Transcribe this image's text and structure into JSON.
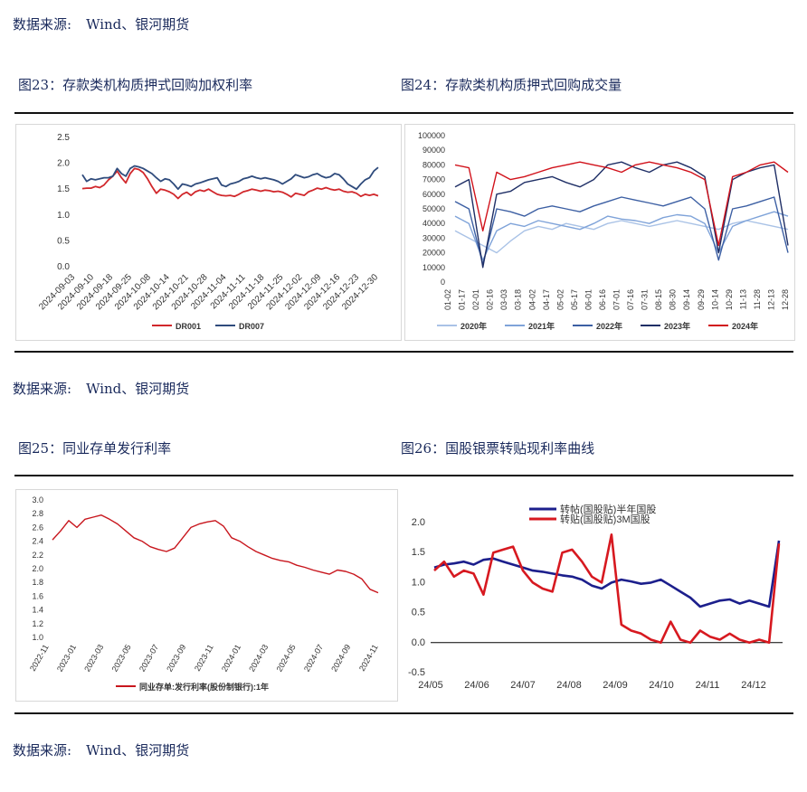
{
  "source_label": "数据来源:",
  "source_value": "Wind、银河期货",
  "titles": {
    "fig23": "图23：存款类机构质押式回购加权利率",
    "fig24": "图24：存款类机构质押式回购成交量",
    "fig25": "图25：同业存单发行利率",
    "fig26": "图26：国股银票转贴现利率曲线"
  },
  "chart_data": [
    {
      "id": "fig23",
      "type": "line",
      "title": "存款类机构质押式回购加权利率",
      "ylim": [
        0,
        2.5
      ],
      "yticks": [
        "0.0",
        "0.5",
        "1.0",
        "1.5",
        "2.0",
        "2.5"
      ],
      "x_tick_labels": [
        "2024-09-03",
        "2024-09-10",
        "2024-09-18",
        "2024-09-25",
        "2024-10-08",
        "2024-10-14",
        "2024-10-21",
        "2024-10-28",
        "2024-11-04",
        "2024-11-11",
        "2024-11-18",
        "2024-11-25",
        "2024-12-02",
        "2024-12-09",
        "2024-12-16",
        "2024-12-23",
        "2024-12-30"
      ],
      "legend_position": "bottom",
      "series": [
        {
          "name": "DR001",
          "color": "#d1272b",
          "values": [
            1.51,
            1.52,
            1.52,
            1.55,
            1.53,
            1.58,
            1.68,
            1.75,
            1.85,
            1.72,
            1.62,
            1.8,
            1.9,
            1.88,
            1.82,
            1.7,
            1.55,
            1.42,
            1.5,
            1.48,
            1.45,
            1.4,
            1.32,
            1.4,
            1.44,
            1.38,
            1.45,
            1.48,
            1.46,
            1.5,
            1.45,
            1.4,
            1.38,
            1.37,
            1.38,
            1.36,
            1.4,
            1.45,
            1.47,
            1.5,
            1.48,
            1.46,
            1.48,
            1.47,
            1.45,
            1.46,
            1.44,
            1.4,
            1.35,
            1.42,
            1.4,
            1.38,
            1.45,
            1.48,
            1.52,
            1.5,
            1.53,
            1.5,
            1.48,
            1.5,
            1.46,
            1.44,
            1.45,
            1.42,
            1.36,
            1.4,
            1.38,
            1.4,
            1.37
          ]
        },
        {
          "name": "DR007",
          "color": "#2f4b7c",
          "values": [
            1.78,
            1.65,
            1.7,
            1.68,
            1.7,
            1.72,
            1.72,
            1.75,
            1.9,
            1.8,
            1.75,
            1.9,
            1.95,
            1.93,
            1.9,
            1.85,
            1.8,
            1.72,
            1.65,
            1.7,
            1.68,
            1.6,
            1.5,
            1.6,
            1.58,
            1.55,
            1.6,
            1.62,
            1.65,
            1.68,
            1.7,
            1.72,
            1.58,
            1.55,
            1.6,
            1.62,
            1.65,
            1.7,
            1.72,
            1.75,
            1.72,
            1.7,
            1.72,
            1.7,
            1.68,
            1.65,
            1.6,
            1.65,
            1.7,
            1.78,
            1.75,
            1.72,
            1.74,
            1.78,
            1.8,
            1.75,
            1.72,
            1.74,
            1.8,
            1.78,
            1.7,
            1.6,
            1.55,
            1.5,
            1.6,
            1.68,
            1.72,
            1.85,
            1.92
          ]
        }
      ]
    },
    {
      "id": "fig24",
      "type": "line",
      "title": "存款类机构质押式回购成交量",
      "ylim": [
        0,
        100000
      ],
      "yticks": [
        "0",
        "10000",
        "20000",
        "30000",
        "40000",
        "50000",
        "60000",
        "70000",
        "80000",
        "90000",
        "100000"
      ],
      "x_tick_labels": [
        "01-02",
        "01-17",
        "02-01",
        "02-16",
        "03-03",
        "03-18",
        "04-02",
        "04-17",
        "05-02",
        "05-17",
        "06-01",
        "06-16",
        "07-01",
        "07-16",
        "07-31",
        "08-15",
        "08-30",
        "09-14",
        "09-29",
        "10-14",
        "10-29",
        "11-13",
        "11-28",
        "12-13",
        "12-28"
      ],
      "legend_position": "bottom",
      "series": [
        {
          "name": "2020年",
          "color": "#a9c2e6",
          "values": [
            35000,
            30000,
            25000,
            20000,
            28000,
            35000,
            38000,
            36000,
            40000,
            38000,
            36000,
            40000,
            42000,
            40000,
            38000,
            40000,
            42000,
            40000,
            38000,
            36000,
            40000,
            42000,
            40000,
            38000,
            36000
          ]
        },
        {
          "name": "2021年",
          "color": "#7fa3d9",
          "values": [
            45000,
            40000,
            15000,
            35000,
            40000,
            38000,
            42000,
            40000,
            38000,
            36000,
            40000,
            45000,
            43000,
            42000,
            40000,
            44000,
            46000,
            45000,
            40000,
            20000,
            38000,
            42000,
            45000,
            48000,
            45000
          ]
        },
        {
          "name": "2022年",
          "color": "#3c5fa3",
          "values": [
            55000,
            50000,
            12000,
            50000,
            48000,
            45000,
            50000,
            52000,
            50000,
            48000,
            52000,
            55000,
            58000,
            56000,
            54000,
            52000,
            55000,
            58000,
            50000,
            15000,
            50000,
            52000,
            55000,
            58000,
            20000
          ]
        },
        {
          "name": "2023年",
          "color": "#1f2f66",
          "values": [
            65000,
            70000,
            10000,
            60000,
            62000,
            68000,
            70000,
            72000,
            68000,
            65000,
            70000,
            80000,
            82000,
            78000,
            75000,
            80000,
            82000,
            78000,
            72000,
            20000,
            70000,
            75000,
            78000,
            80000,
            25000
          ]
        },
        {
          "name": "2024年",
          "color": "#d1121b",
          "values": [
            80000,
            78000,
            35000,
            75000,
            70000,
            72000,
            75000,
            78000,
            80000,
            82000,
            80000,
            78000,
            75000,
            80000,
            82000,
            80000,
            78000,
            75000,
            70000,
            25000,
            72000,
            75000,
            80000,
            82000,
            75000
          ]
        }
      ]
    },
    {
      "id": "fig25",
      "type": "line",
      "title": "同业存单发行利率",
      "ylim": [
        1.0,
        3.0
      ],
      "yticks": [
        "1.0",
        "1.2",
        "1.4",
        "1.6",
        "1.8",
        "2.0",
        "2.2",
        "2.4",
        "2.6",
        "2.8",
        "3.0"
      ],
      "x_tick_labels": [
        "2022-11",
        "2023-01",
        "2023-03",
        "2023-05",
        "2023-07",
        "2023-09",
        "2023-11",
        "2024-01",
        "2024-03",
        "2024-05",
        "2024-07",
        "2024-09",
        "2024-11"
      ],
      "legend_position": "bottom",
      "series": [
        {
          "name": "同业存单:发行利率(股份制银行):1年",
          "color": "#c8161d",
          "values": [
            2.42,
            2.55,
            2.7,
            2.6,
            2.72,
            2.75,
            2.78,
            2.72,
            2.65,
            2.55,
            2.45,
            2.4,
            2.32,
            2.28,
            2.25,
            2.3,
            2.45,
            2.6,
            2.65,
            2.68,
            2.7,
            2.62,
            2.45,
            2.4,
            2.32,
            2.25,
            2.2,
            2.15,
            2.12,
            2.1,
            2.05,
            2.02,
            1.98,
            1.95,
            1.92,
            1.98,
            1.96,
            1.92,
            1.85,
            1.7,
            1.65
          ]
        }
      ]
    },
    {
      "id": "fig26",
      "type": "line",
      "title": "国股银票转贴现利率曲线",
      "ylim": [
        -0.5,
        2.0
      ],
      "yticks": [
        "-0.5",
        "0.0",
        "0.5",
        "1.0",
        "1.5",
        "2.0"
      ],
      "x_tick_labels": [
        "24/05",
        "24/06",
        "24/07",
        "24/08",
        "24/09",
        "24/10",
        "24/11",
        "24/12"
      ],
      "legend_position": "top",
      "series": [
        {
          "name": "转帖(国股贴)半年国股",
          "color": "#1c1f8c",
          "values": [
            1.25,
            1.3,
            1.32,
            1.35,
            1.3,
            1.38,
            1.4,
            1.35,
            1.3,
            1.25,
            1.2,
            1.18,
            1.15,
            1.12,
            1.1,
            1.05,
            0.95,
            0.9,
            1.0,
            1.05,
            1.02,
            0.98,
            1.0,
            1.05,
            0.95,
            0.85,
            0.75,
            0.6,
            0.65,
            0.7,
            0.72,
            0.65,
            0.7,
            0.65,
            0.6,
            1.7
          ]
        },
        {
          "name": "转贴(国股贴)3M国股",
          "color": "#d71920",
          "values": [
            1.2,
            1.35,
            1.1,
            1.2,
            1.15,
            0.8,
            1.5,
            1.55,
            1.6,
            1.2,
            1.0,
            0.9,
            0.85,
            1.5,
            1.55,
            1.35,
            1.1,
            1.0,
            1.8,
            0.3,
            0.2,
            0.15,
            0.05,
            0.0,
            0.35,
            0.05,
            0.0,
            0.2,
            0.1,
            0.05,
            0.15,
            0.05,
            0.0,
            0.05,
            0.0,
            1.65
          ]
        }
      ]
    }
  ]
}
